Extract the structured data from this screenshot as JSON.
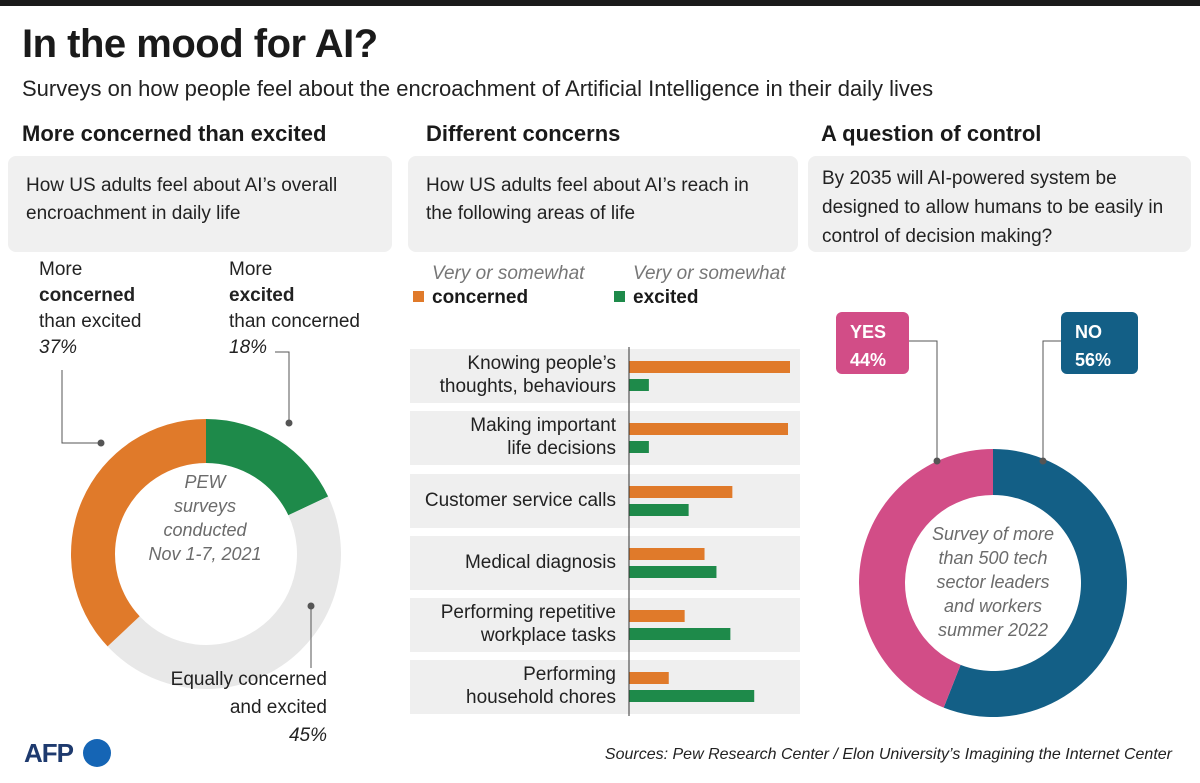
{
  "header": {
    "title": "In the mood for AI?",
    "subtitle": "Surveys on how people feel about the encroachment of Artificial Intelligence in their daily lives"
  },
  "left": {
    "heading": "More concerned than excited",
    "question": "How US adults feel about AI’s overall encroachment in daily life",
    "label_concerned": {
      "line1": "More",
      "line2": "concerned",
      "line3": "than excited",
      "value": "37%"
    },
    "label_excited": {
      "line1": "More",
      "line2": "excited",
      "line3": "than concerned",
      "value": "18%"
    },
    "label_equal": {
      "line1": "Equally concerned",
      "line2": "and excited",
      "value": "45%"
    },
    "center_note": [
      "PEW",
      "surveys",
      "conducted",
      "Nov 1-7, 2021"
    ]
  },
  "middle": {
    "heading": "Different concerns",
    "question": "How US adults feel about AI’s reach in the following areas of life",
    "legend": {
      "concerned_top": "Very or somewhat",
      "concerned_bottom": "concerned",
      "excited_top": "Very or somewhat",
      "excited_bottom": "excited"
    },
    "rows": [
      [
        "Knowing people’s",
        "thoughts, behaviours"
      ],
      [
        "Making important",
        "life decisions"
      ],
      [
        "Customer service calls"
      ],
      [
        "Medical diagnosis"
      ],
      [
        "Performing repetitive",
        "workplace tasks"
      ],
      [
        "Performing",
        "household chores"
      ]
    ]
  },
  "right": {
    "heading": "A question of control",
    "question": "By 2035 will AI-powered system be designed to allow humans to be easily in control of decision making?",
    "yes_label": "YES",
    "yes_value": "44%",
    "no_label": "NO",
    "no_value": "56%",
    "center_note": [
      "Survey of more",
      "than 500 tech",
      "sector leaders",
      "and workers",
      "summer 2022"
    ]
  },
  "footer": {
    "logo": "AFP",
    "sources": "Sources: Pew Research Center / Elon University’s Imagining the Internet Center"
  },
  "colors": {
    "concerned": "#e07a2a",
    "excited": "#1e8a4a",
    "equal": "#e8e8e8",
    "yes": "#d24d87",
    "no": "#135f86"
  },
  "chart_data": [
    {
      "type": "pie",
      "title": "More concerned than excited",
      "labels": [
        "More concerned than excited",
        "More excited than concerned",
        "Equally concerned and excited"
      ],
      "values": [
        37,
        18,
        45
      ]
    },
    {
      "type": "bar",
      "title": "Different concerns",
      "categories": [
        "Knowing people’s thoughts, behaviours",
        "Making important life decisions",
        "Customer service calls",
        "Medical diagnosis",
        "Performing repetitive workplace tasks",
        "Performing household chores"
      ],
      "series": [
        {
          "name": "Very or somewhat concerned",
          "values": [
            81,
            80,
            52,
            38,
            28,
            20
          ]
        },
        {
          "name": "Very or somewhat excited",
          "values": [
            10,
            10,
            30,
            44,
            51,
            63
          ]
        }
      ]
    },
    {
      "type": "pie",
      "title": "A question of control",
      "labels": [
        "YES",
        "NO"
      ],
      "values": [
        44,
        56
      ]
    }
  ]
}
